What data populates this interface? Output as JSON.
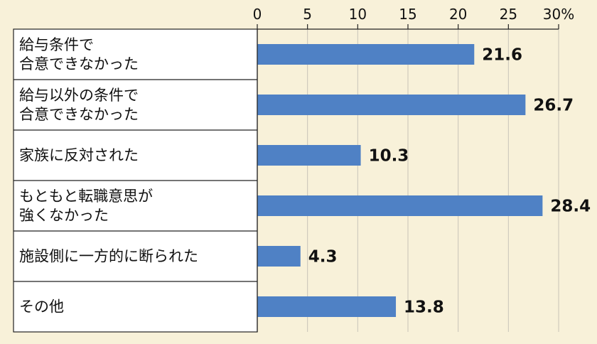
{
  "chart_data": {
    "type": "bar",
    "orientation": "horizontal",
    "title": "",
    "xlabel": "",
    "ylabel": "",
    "unit": "%",
    "xlim": [
      0,
      30
    ],
    "ticks": [
      0,
      5,
      10,
      15,
      20,
      25,
      30
    ],
    "tick_labels": [
      "0",
      "5",
      "10",
      "15",
      "20",
      "25",
      "30%"
    ],
    "categories": [
      [
        "給与条件で",
        "合意できなかった"
      ],
      [
        "給与以外の条件で",
        "合意できなかった"
      ],
      [
        "家族に反対された"
      ],
      [
        "もともと転職意思が",
        "強くなかった"
      ],
      [
        "施設側に一方的に断られた"
      ],
      [
        "その他"
      ]
    ],
    "values": [
      21.6,
      26.7,
      10.3,
      28.4,
      4.3,
      13.8
    ],
    "value_labels": [
      "21.6",
      "26.7",
      "10.3",
      "28.4",
      "4.3",
      "13.8"
    ],
    "grid": "vertical",
    "colors": {
      "bar": "#4f81c5",
      "background": "#f8f1d9",
      "label_panel": "#ffffff",
      "grid": "#c8c4b8"
    }
  }
}
